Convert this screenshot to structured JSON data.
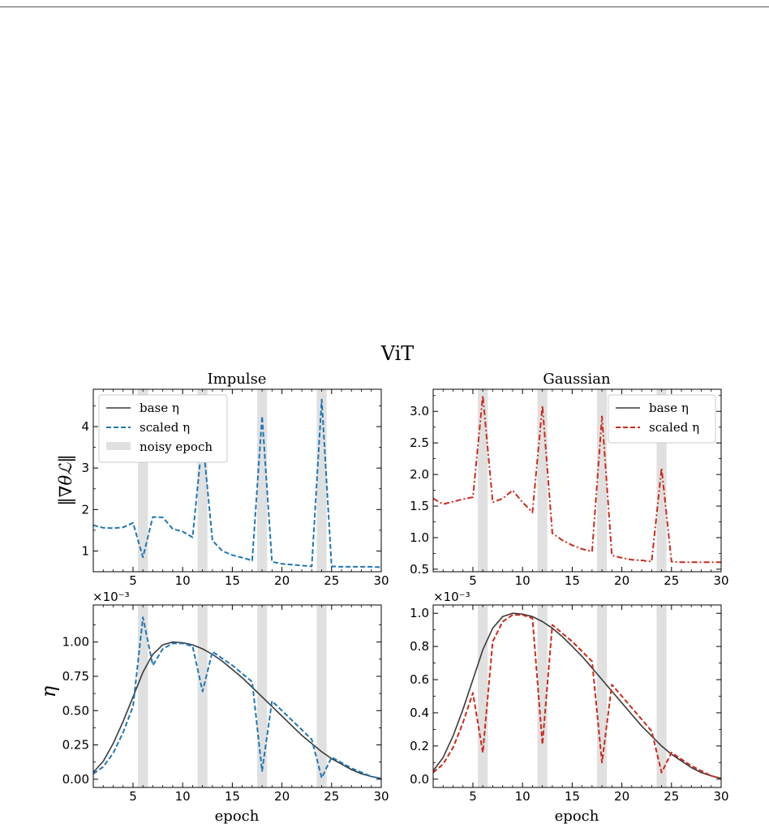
{
  "figure": {
    "suptitle": "ViT",
    "colors": {
      "base": "#3a3a3a",
      "impulse": "#1f77b4",
      "gaussian": "#cc2a1a",
      "noisy": "#e0e0e0"
    }
  },
  "chart_data": [
    {
      "type": "line",
      "title": "Impulse",
      "xlabel": "",
      "ylabel": "‖∇θℒ‖",
      "xlim": [
        1,
        30
      ],
      "ylim": [
        0.5,
        4.9
      ],
      "xticks": [
        5,
        10,
        15,
        20,
        25,
        30
      ],
      "yticks": [
        1,
        2,
        3,
        4
      ],
      "ytick_labels": [
        "1",
        "2",
        "3",
        "4"
      ],
      "noisy_epochs": [
        6,
        12,
        18,
        24
      ],
      "legend": {
        "position": "top-left",
        "entries": [
          "base η",
          "scaled η",
          "noisy epoch"
        ]
      },
      "series": [
        {
          "name": "scaled η",
          "style": "dashed",
          "x": [
            1,
            2,
            3,
            4,
            5,
            6,
            7,
            8,
            9,
            10,
            11,
            12,
            13,
            14,
            15,
            16,
            17,
            18,
            19,
            20,
            21,
            22,
            23,
            24,
            25,
            26,
            27,
            28,
            29,
            30
          ],
          "y": [
            1.62,
            1.56,
            1.55,
            1.57,
            1.68,
            0.85,
            1.82,
            1.81,
            1.53,
            1.47,
            1.33,
            3.75,
            1.25,
            1.0,
            0.9,
            0.84,
            0.77,
            4.25,
            0.74,
            0.69,
            0.67,
            0.65,
            0.63,
            4.65,
            0.63,
            0.62,
            0.62,
            0.62,
            0.62,
            0.61
          ]
        }
      ]
    },
    {
      "type": "line",
      "title": "Gaussian",
      "xlabel": "",
      "ylabel": "",
      "xlim": [
        1,
        30
      ],
      "ylim": [
        0.46,
        3.35
      ],
      "xticks": [
        5,
        10,
        15,
        20,
        25,
        30
      ],
      "yticks": [
        0.5,
        1.0,
        1.5,
        2.0,
        2.5,
        3.0
      ],
      "ytick_labels": [
        "0.5",
        "1.0",
        "1.5",
        "2.0",
        "2.5",
        "3.0"
      ],
      "noisy_epochs": [
        6,
        12,
        18,
        24
      ],
      "legend": {
        "position": "top-right",
        "entries": [
          "base η",
          "scaled η"
        ]
      },
      "series": [
        {
          "name": "scaled η",
          "style": "dashdot",
          "x": [
            1,
            2,
            3,
            4,
            5,
            6,
            7,
            8,
            9,
            10,
            11,
            12,
            13,
            14,
            15,
            16,
            17,
            18,
            19,
            20,
            21,
            22,
            23,
            24,
            25,
            26,
            27,
            28,
            29,
            30
          ],
          "y": [
            1.62,
            1.53,
            1.57,
            1.61,
            1.64,
            3.25,
            1.56,
            1.62,
            1.75,
            1.56,
            1.4,
            3.09,
            1.07,
            0.96,
            0.88,
            0.82,
            0.78,
            2.92,
            0.72,
            0.68,
            0.65,
            0.64,
            0.62,
            2.1,
            0.62,
            0.61,
            0.61,
            0.61,
            0.61,
            0.61
          ]
        }
      ]
    },
    {
      "type": "line",
      "title": "",
      "xlabel": "epoch",
      "ylabel": "η",
      "scale_label": "×10⁻³",
      "xlim": [
        1,
        30
      ],
      "ylim": [
        -0.06,
        1.27
      ],
      "xticks": [
        5,
        10,
        15,
        20,
        25,
        30
      ],
      "yticks": [
        0.0,
        0.25,
        0.5,
        0.75,
        1.0
      ],
      "ytick_labels": [
        "0.00",
        "0.25",
        "0.50",
        "0.75",
        "1.00"
      ],
      "noisy_epochs": [
        6,
        12,
        18,
        24
      ],
      "series": [
        {
          "name": "base η",
          "style": "solid",
          "x": [
            1,
            2,
            3,
            4,
            5,
            6,
            7,
            8,
            9,
            10,
            11,
            12,
            13,
            14,
            15,
            16,
            17,
            18,
            19,
            20,
            21,
            22,
            23,
            24,
            25,
            26,
            27,
            28,
            29,
            30
          ],
          "y": [
            0.05,
            0.13,
            0.26,
            0.42,
            0.6,
            0.78,
            0.91,
            0.98,
            1.0,
            0.995,
            0.98,
            0.95,
            0.91,
            0.86,
            0.8,
            0.74,
            0.67,
            0.6,
            0.53,
            0.46,
            0.39,
            0.32,
            0.26,
            0.2,
            0.15,
            0.11,
            0.07,
            0.04,
            0.02,
            0.005
          ]
        },
        {
          "name": "scaled η",
          "style": "dashed",
          "x": [
            1,
            2,
            3,
            4,
            5,
            6,
            7,
            8,
            9,
            10,
            11,
            12,
            13,
            14,
            15,
            16,
            17,
            18,
            19,
            20,
            21,
            22,
            23,
            24,
            25,
            26,
            27,
            28,
            29,
            30
          ],
          "y": [
            0.04,
            0.09,
            0.19,
            0.34,
            0.53,
            1.18,
            0.83,
            0.95,
            0.99,
            0.99,
            0.97,
            0.64,
            0.93,
            0.88,
            0.83,
            0.77,
            0.71,
            0.06,
            0.57,
            0.5,
            0.43,
            0.36,
            0.29,
            0.01,
            0.16,
            0.12,
            0.08,
            0.05,
            0.02,
            0.005
          ]
        }
      ]
    },
    {
      "type": "line",
      "title": "",
      "xlabel": "epoch",
      "ylabel": "",
      "scale_label": "×10⁻³",
      "xlim": [
        1,
        30
      ],
      "ylim": [
        -0.05,
        1.05
      ],
      "xticks": [
        5,
        10,
        15,
        20,
        25,
        30
      ],
      "yticks": [
        0.0,
        0.2,
        0.4,
        0.6,
        0.8,
        1.0
      ],
      "ytick_labels": [
        "0.0",
        "0.2",
        "0.4",
        "0.6",
        "0.8",
        "1.0"
      ],
      "noisy_epochs": [
        6,
        12,
        18,
        24
      ],
      "series": [
        {
          "name": "base η",
          "style": "solid",
          "x": [
            1,
            2,
            3,
            4,
            5,
            6,
            7,
            8,
            9,
            10,
            11,
            12,
            13,
            14,
            15,
            16,
            17,
            18,
            19,
            20,
            21,
            22,
            23,
            24,
            25,
            26,
            27,
            28,
            29,
            30
          ],
          "y": [
            0.05,
            0.13,
            0.26,
            0.42,
            0.6,
            0.78,
            0.91,
            0.98,
            1.0,
            0.995,
            0.98,
            0.95,
            0.91,
            0.86,
            0.8,
            0.74,
            0.67,
            0.6,
            0.53,
            0.46,
            0.39,
            0.32,
            0.26,
            0.2,
            0.15,
            0.11,
            0.07,
            0.04,
            0.02,
            0.005
          ]
        },
        {
          "name": "scaled η",
          "style": "dashed",
          "x": [
            1,
            2,
            3,
            4,
            5,
            6,
            7,
            8,
            9,
            10,
            11,
            12,
            13,
            14,
            15,
            16,
            17,
            18,
            19,
            20,
            21,
            22,
            23,
            24,
            25,
            26,
            27,
            28,
            29,
            30
          ],
          "y": [
            0.04,
            0.09,
            0.19,
            0.34,
            0.52,
            0.16,
            0.83,
            0.95,
            0.99,
            0.99,
            0.97,
            0.21,
            0.93,
            0.88,
            0.83,
            0.77,
            0.71,
            0.1,
            0.57,
            0.5,
            0.43,
            0.36,
            0.29,
            0.04,
            0.16,
            0.12,
            0.08,
            0.05,
            0.02,
            0.005
          ]
        }
      ]
    }
  ]
}
